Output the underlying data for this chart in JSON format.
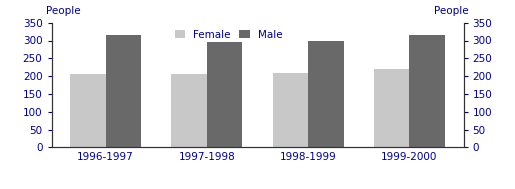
{
  "categories": [
    "1996-1997",
    "1997-1998",
    "1998-1999",
    "1999-2000"
  ],
  "female_values": [
    205,
    205,
    210,
    220
  ],
  "male_values": [
    315,
    295,
    300,
    315
  ],
  "female_color": "#c8c8c8",
  "male_color": "#696969",
  "ylabel_left": "People",
  "ylabel_right": "People",
  "ylim": [
    0,
    350
  ],
  "yticks": [
    0,
    50,
    100,
    150,
    200,
    250,
    300,
    350
  ],
  "legend_labels": [
    "Female",
    "Male"
  ],
  "bar_width": 0.35,
  "background_color": "#ffffff",
  "text_color": "#00008B",
  "tick_color": "#333333",
  "spine_color": "#333333"
}
